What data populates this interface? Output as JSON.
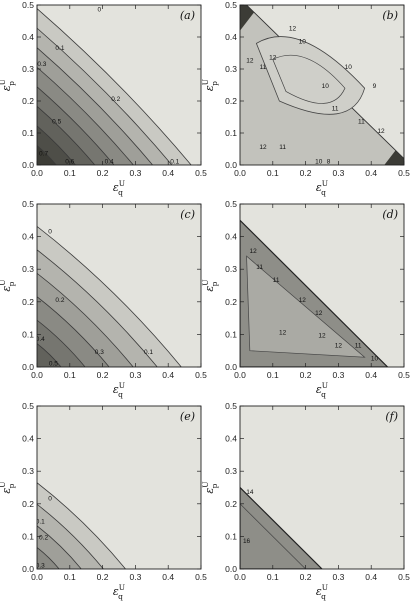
{
  "figure": {
    "x_label_base": "ε",
    "x_label_sub": "q",
    "x_label_sup": "U",
    "y_label_base": "ε",
    "y_label_sub": "p",
    "y_label_sup": "U"
  },
  "chart_data": [
    {
      "panel": "(a)",
      "type": "contour",
      "kind": "decreasing",
      "xlim": [
        0,
        0.5
      ],
      "ylim": [
        0,
        0.5
      ],
      "x_ticks": [
        "0.0",
        "0.1",
        "0.2",
        "0.3",
        "0.4",
        "0.5"
      ],
      "y_ticks": [
        "0.0",
        "0.1",
        "0.2",
        "0.3",
        "0.4",
        "0.5"
      ],
      "levels": [
        0,
        0.1,
        0.2,
        0.3,
        0.4,
        0.5,
        0.6,
        0.7
      ],
      "level_labels": [
        {
          "text": "0",
          "x": 0.19,
          "y": 0.48
        },
        {
          "text": "0.1",
          "x": 0.07,
          "y": 0.36
        },
        {
          "text": "0.3",
          "x": 0.015,
          "y": 0.31
        },
        {
          "text": "0.2",
          "x": 0.24,
          "y": 0.2
        },
        {
          "text": "0.5",
          "x": 0.06,
          "y": 0.13
        },
        {
          "text": "0.7",
          "x": 0.02,
          "y": 0.03
        },
        {
          "text": "0.6",
          "x": 0.1,
          "y": 0.005
        },
        {
          "text": "0.4",
          "x": 0.22,
          "y": 0.005
        },
        {
          "text": "0.1",
          "x": 0.42,
          "y": 0.005
        }
      ]
    },
    {
      "panel": "(b)",
      "type": "contour",
      "kind": "island",
      "xlim": [
        0,
        0.5
      ],
      "ylim": [
        0,
        0.5
      ],
      "x_ticks": [
        "0.0",
        "0.1",
        "0.2",
        "0.3",
        "0.4",
        "0.5"
      ],
      "y_ticks": [
        "0.0",
        "0.1",
        "0.2",
        "0.3",
        "0.4",
        "0.5"
      ],
      "levels": [
        8,
        9,
        10,
        11,
        12
      ],
      "level_labels": [
        {
          "text": "12",
          "x": 0.16,
          "y": 0.42
        },
        {
          "text": "10",
          "x": 0.19,
          "y": 0.38
        },
        {
          "text": "12",
          "x": 0.1,
          "y": 0.33
        },
        {
          "text": "11",
          "x": 0.07,
          "y": 0.3
        },
        {
          "text": "12",
          "x": 0.03,
          "y": 0.32
        },
        {
          "text": "10",
          "x": 0.26,
          "y": 0.24
        },
        {
          "text": "10",
          "x": 0.33,
          "y": 0.3
        },
        {
          "text": "9",
          "x": 0.41,
          "y": 0.24
        },
        {
          "text": "11",
          "x": 0.29,
          "y": 0.17
        },
        {
          "text": "11",
          "x": 0.37,
          "y": 0.13
        },
        {
          "text": "12",
          "x": 0.43,
          "y": 0.1
        },
        {
          "text": "12",
          "x": 0.07,
          "y": 0.05
        },
        {
          "text": "11",
          "x": 0.13,
          "y": 0.05
        },
        {
          "text": "10",
          "x": 0.24,
          "y": 0.005
        },
        {
          "text": "8",
          "x": 0.27,
          "y": 0.005
        }
      ]
    },
    {
      "panel": "(c)",
      "type": "contour",
      "kind": "decreasing",
      "xlim": [
        0,
        0.5
      ],
      "ylim": [
        0,
        0.5
      ],
      "x_ticks": [
        "0.0",
        "0.1",
        "0.2",
        "0.3",
        "0.4",
        "0.5"
      ],
      "y_ticks": [
        "0.0",
        "0.1",
        "0.2",
        "0.3",
        "0.4",
        "0.5"
      ],
      "levels": [
        0,
        0.1,
        0.2,
        0.3,
        0.4,
        0.5
      ],
      "level_labels": [
        {
          "text": "0",
          "x": 0.04,
          "y": 0.41
        },
        {
          "text": "0.2",
          "x": 0.07,
          "y": 0.2
        },
        {
          "text": "0.4",
          "x": 0.01,
          "y": 0.08
        },
        {
          "text": "0.3",
          "x": 0.19,
          "y": 0.04
        },
        {
          "text": "0.1",
          "x": 0.34,
          "y": 0.04
        },
        {
          "text": "0.5",
          "x": 0.05,
          "y": 0.005
        }
      ]
    },
    {
      "panel": "(d)",
      "type": "contour",
      "kind": "band",
      "xlim": [
        0,
        0.5
      ],
      "ylim": [
        0,
        0.5
      ],
      "x_ticks": [
        "0.0",
        "0.1",
        "0.2",
        "0.3",
        "0.4",
        "0.5"
      ],
      "y_ticks": [
        "0.0",
        "0.1",
        "0.2",
        "0.3",
        "0.4",
        "0.5"
      ],
      "levels": [
        10,
        11,
        12
      ],
      "level_labels": [
        {
          "text": "12",
          "x": 0.04,
          "y": 0.35
        },
        {
          "text": "11",
          "x": 0.06,
          "y": 0.3
        },
        {
          "text": "11",
          "x": 0.11,
          "y": 0.26
        },
        {
          "text": "12",
          "x": 0.19,
          "y": 0.2
        },
        {
          "text": "12",
          "x": 0.24,
          "y": 0.16
        },
        {
          "text": "12",
          "x": 0.13,
          "y": 0.1
        },
        {
          "text": "12",
          "x": 0.25,
          "y": 0.09
        },
        {
          "text": "12",
          "x": 0.3,
          "y": 0.06
        },
        {
          "text": "11",
          "x": 0.36,
          "y": 0.06
        },
        {
          "text": "10",
          "x": 0.41,
          "y": 0.02
        }
      ]
    },
    {
      "panel": "(e)",
      "type": "contour",
      "kind": "decreasing",
      "xlim": [
        0,
        0.5
      ],
      "ylim": [
        0,
        0.5
      ],
      "x_ticks": [
        "0.0",
        "0.1",
        "0.2",
        "0.3",
        "0.4",
        "0.5"
      ],
      "y_ticks": [
        "0.0",
        "0.1",
        "0.2",
        "0.3",
        "0.4",
        "0.5"
      ],
      "levels": [
        0,
        0.1,
        0.2,
        0.3
      ],
      "level_labels": [
        {
          "text": "0",
          "x": 0.04,
          "y": 0.21
        },
        {
          "text": "0.1",
          "x": 0.01,
          "y": 0.14
        },
        {
          "text": "0.2",
          "x": 0.02,
          "y": 0.09
        },
        {
          "text": "0.3",
          "x": 0.01,
          "y": 0.005
        }
      ]
    },
    {
      "panel": "(f)",
      "type": "contour",
      "kind": "band",
      "xlim": [
        0,
        0.5
      ],
      "ylim": [
        0,
        0.5
      ],
      "x_ticks": [
        "0.0",
        "0.1",
        "0.2",
        "0.3",
        "0.4",
        "0.5"
      ],
      "y_ticks": [
        "0.0",
        "0.1",
        "0.2",
        "0.3",
        "0.4",
        "0.5"
      ],
      "levels": [
        14,
        16
      ],
      "level_labels": [
        {
          "text": "14",
          "x": 0.03,
          "y": 0.23
        },
        {
          "text": "16",
          "x": 0.02,
          "y": 0.08
        }
      ]
    }
  ]
}
